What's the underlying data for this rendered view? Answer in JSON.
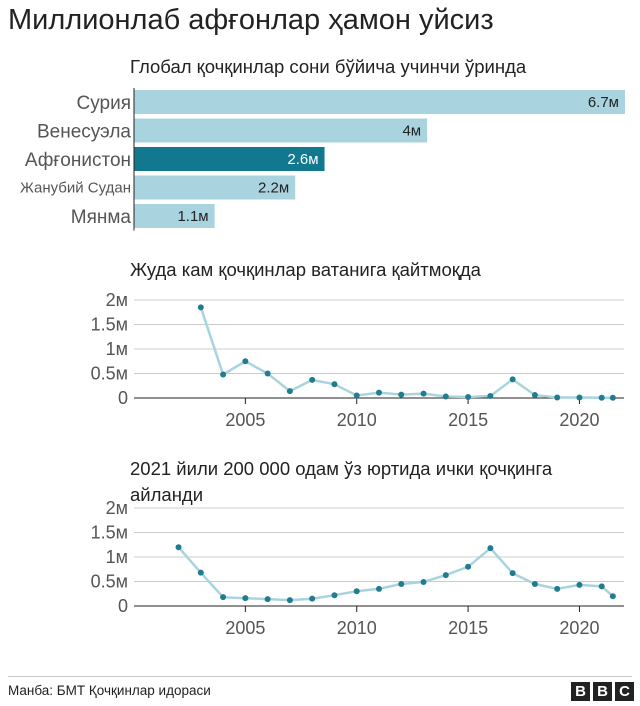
{
  "title": "Миллионлаб афғонлар ҳамон уйсиз",
  "source": "Манба: БМТ Қочқинлар идораси",
  "logo": [
    "B",
    "B",
    "C"
  ],
  "colors": {
    "bar": "#a9d4df",
    "bar_highlight": "#12788f",
    "line": "#a9d4df",
    "point": "#217c91",
    "grid": "#cccccc",
    "axis": "#222222"
  },
  "chart_data": [
    {
      "type": "bar",
      "orientation": "horizontal",
      "title": "Глобал қочқинлар сони бўйича учинчи ўринда",
      "categories": [
        "Сурия",
        "Венесуэла",
        "Афғонистон",
        "Жанубий Судан",
        "Мянма"
      ],
      "values": [
        6.7,
        4,
        2.6,
        2.2,
        1.1
      ],
      "value_labels": [
        "6.7м",
        "4м",
        "2.6м",
        "2.2м",
        "1.1м"
      ],
      "highlight": "Афғонистон",
      "xlim": [
        0,
        6.7
      ]
    },
    {
      "type": "line",
      "title": "Жуда кам қочқинлар ватанига қайтмоқда",
      "x": [
        2003,
        2004,
        2005,
        2006,
        2007,
        2008,
        2009,
        2010,
        2011,
        2012,
        2013,
        2014,
        2015,
        2016,
        2017,
        2018,
        2019,
        2020,
        2021,
        2021.5
      ],
      "y": [
        1.85,
        0.48,
        0.75,
        0.5,
        0.14,
        0.37,
        0.28,
        0.05,
        0.11,
        0.07,
        0.09,
        0.03,
        0.02,
        0.04,
        0.38,
        0.06,
        0.01,
        0.01,
        0.005,
        0.005
      ],
      "xlim": [
        2000,
        2022
      ],
      "ylim": [
        0,
        2
      ],
      "xticks": [
        2005,
        2010,
        2015,
        2020
      ],
      "yticks": [
        0,
        0.5,
        1,
        1.5,
        2
      ],
      "ytick_labels": [
        "0",
        "0.5м",
        "1м",
        "1.5м",
        "2м"
      ],
      "grid": true
    },
    {
      "type": "line",
      "title": "2021 йили 200 000 одам ўз юртида ички қочқинга айланди",
      "x": [
        2002,
        2003,
        2004,
        2005,
        2006,
        2007,
        2008,
        2009,
        2010,
        2011,
        2012,
        2013,
        2014,
        2015,
        2016,
        2017,
        2018,
        2019,
        2020,
        2021,
        2021.5
      ],
      "y": [
        1.2,
        0.68,
        0.18,
        0.16,
        0.14,
        0.12,
        0.15,
        0.22,
        0.3,
        0.35,
        0.45,
        0.49,
        0.63,
        0.8,
        1.18,
        0.67,
        0.45,
        0.35,
        0.43,
        0.4,
        0.2
      ],
      "xlim": [
        2000,
        2022
      ],
      "ylim": [
        0,
        2
      ],
      "xticks": [
        2005,
        2010,
        2015,
        2020
      ],
      "yticks": [
        0,
        0.5,
        1,
        1.5,
        2
      ],
      "ytick_labels": [
        "0",
        "0.5м",
        "1м",
        "1.5м",
        "2м"
      ],
      "grid": true
    }
  ]
}
